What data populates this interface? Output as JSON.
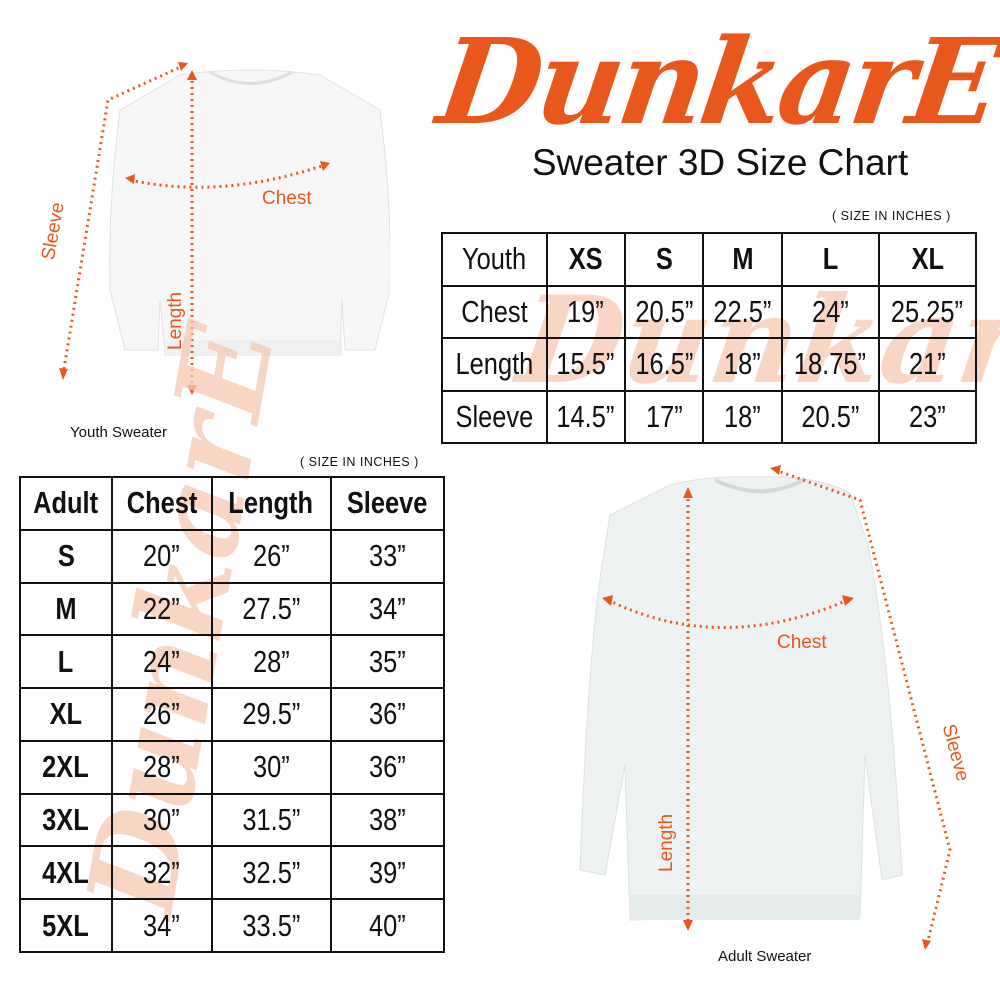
{
  "brand": {
    "logo_text": "DunkarE",
    "color": "#e8581c"
  },
  "title": "Sweater 3D Size Chart",
  "youth": {
    "units": "( SIZE IN INCHES )",
    "caption": "Youth Sweater",
    "labels": {
      "chest": "Chest",
      "length": "Length",
      "sleeve": "Sleeve"
    },
    "header": [
      "Youth",
      "XS",
      "S",
      "M",
      "L",
      "XL"
    ],
    "rows": [
      [
        "Chest",
        "19”",
        "20.5”",
        "22.5”",
        "24”",
        "25.25”"
      ],
      [
        "Length",
        "15.5”",
        "16.5”",
        "18”",
        "18.75”",
        "21”"
      ],
      [
        "Sleeve",
        "14.5”",
        "17”",
        "18”",
        "20.5”",
        "23”"
      ]
    ]
  },
  "adult": {
    "units": "( SIZE IN INCHES )",
    "caption": "Adult Sweater",
    "labels": {
      "chest": "Chest",
      "length": "Length",
      "sleeve": "Sleeve"
    },
    "header": [
      "Adult",
      "Chest",
      "Length",
      "Sleeve"
    ],
    "rows": [
      [
        "S",
        "20”",
        "26”",
        "33”"
      ],
      [
        "M",
        "22”",
        "27.5”",
        "34”"
      ],
      [
        "L",
        "24”",
        "28”",
        "35”"
      ],
      [
        "XL",
        "26”",
        "29.5”",
        "36”"
      ],
      [
        "2XL",
        "28”",
        "30”",
        "36”"
      ],
      [
        "3XL",
        "30”",
        "31.5”",
        "38”"
      ],
      [
        "4XL",
        "32”",
        "32.5”",
        "39”"
      ],
      [
        "5XL",
        "34”",
        "33.5”",
        "40”"
      ]
    ]
  }
}
